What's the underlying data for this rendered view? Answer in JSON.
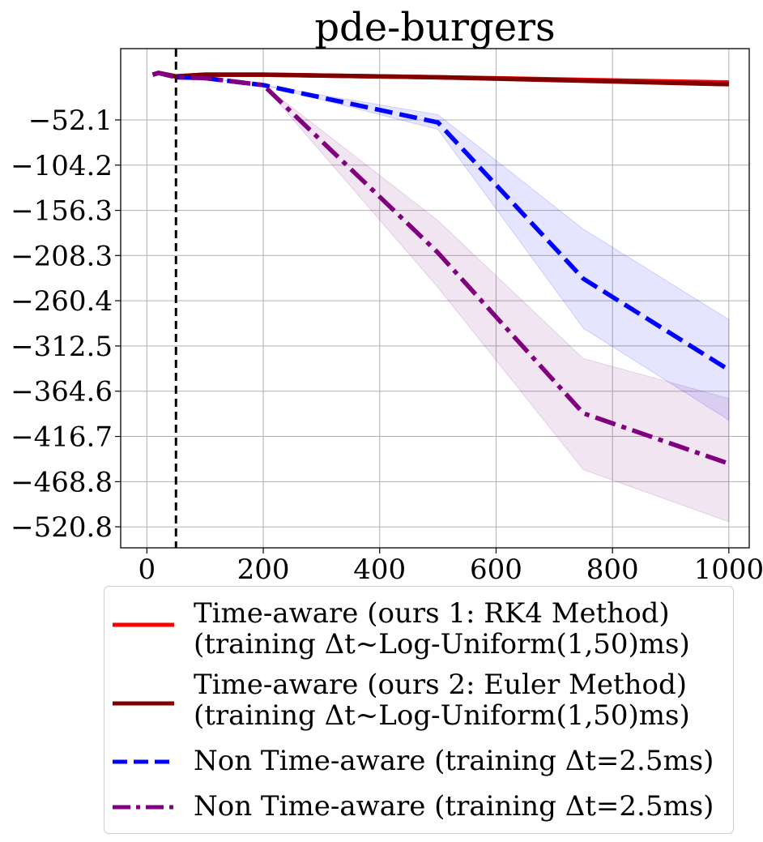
{
  "chart_data": {
    "type": "line",
    "title": "pde-burgers",
    "xlabel": "",
    "ylabel": "",
    "xlim": [
      -45,
      1035
    ],
    "ylim": [
      -545,
      30
    ],
    "xticks": [
      0,
      200,
      400,
      600,
      800,
      1000
    ],
    "xtick_labels": [
      "0",
      "200",
      "400",
      "600",
      "800",
      "1000"
    ],
    "yticks": [
      -52.1,
      -104.2,
      -156.3,
      -208.3,
      -260.4,
      -312.5,
      -364.6,
      -416.7,
      -468.8,
      -520.8
    ],
    "ytick_labels": [
      "−52.1",
      "−104.2",
      "−156.3",
      "−208.3",
      "−260.4",
      "−312.5",
      "−364.6",
      "−416.7",
      "−468.8",
      "−520.8"
    ],
    "grid": true,
    "vline": {
      "x": 50,
      "style": "dashed",
      "color": "#000000"
    },
    "legend_placement": "below",
    "series": [
      {
        "name": "Time-aware (ours 1: RK4 Method)\n(training Δt~Log-Uniform(1,50)ms)",
        "legend_lines": [
          "Time-aware (ours 1: RK4 Method)",
          "(training Δt~Log-Uniform(1,50)ms)"
        ],
        "color": "#ff0000",
        "dash": "solid",
        "x": [
          10,
          20,
          50,
          100,
          200,
          500,
          750,
          1000
        ],
        "y": [
          0,
          2,
          -2,
          0,
          0,
          -3,
          -6,
          -9
        ]
      },
      {
        "name": "Time-aware (ours 2: Euler Method)\n(training Δt~Log-Uniform(1,50)ms)",
        "legend_lines": [
          "Time-aware (ours 2: Euler Method)",
          "(training Δt~Log-Uniform(1,50)ms)"
        ],
        "color": "#800000",
        "dash": "solid",
        "x": [
          10,
          20,
          50,
          100,
          200,
          500,
          750,
          1000
        ],
        "y": [
          0,
          2,
          -2,
          0,
          0,
          -3,
          -7,
          -11
        ]
      },
      {
        "name": "Non Time-aware (training Δt=2.5ms)",
        "legend_lines": [
          "Non Time-aware (training Δt=2.5ms)"
        ],
        "color": "#0000ff",
        "dash": "dashed",
        "x": [
          10,
          20,
          50,
          100,
          200,
          500,
          750,
          1000
        ],
        "y": [
          0,
          2,
          -3,
          -4,
          -12,
          -55,
          -235,
          -340
        ],
        "lower": [
          0,
          2,
          -3,
          -4,
          -12,
          -63,
          -292,
          -398
        ],
        "upper": [
          0,
          2,
          -3,
          -4,
          -12,
          -46,
          -178,
          -282
        ]
      },
      {
        "name": "Non Time-aware (training Δt=2.5ms)",
        "legend_lines": [
          "Non Time-aware (training Δt=2.5ms)"
        ],
        "color": "#800080",
        "dash": "dashdot",
        "x": [
          10,
          20,
          50,
          100,
          200,
          500,
          750,
          1000
        ],
        "y": [
          0,
          2,
          -3,
          -4,
          -12,
          -205,
          -390,
          -448
        ],
        "lower": [
          0,
          2,
          -3,
          -4,
          -12,
          -245,
          -455,
          -515
        ],
        "upper": [
          0,
          2,
          -3,
          -4,
          -12,
          -168,
          -327,
          -373
        ]
      }
    ]
  }
}
